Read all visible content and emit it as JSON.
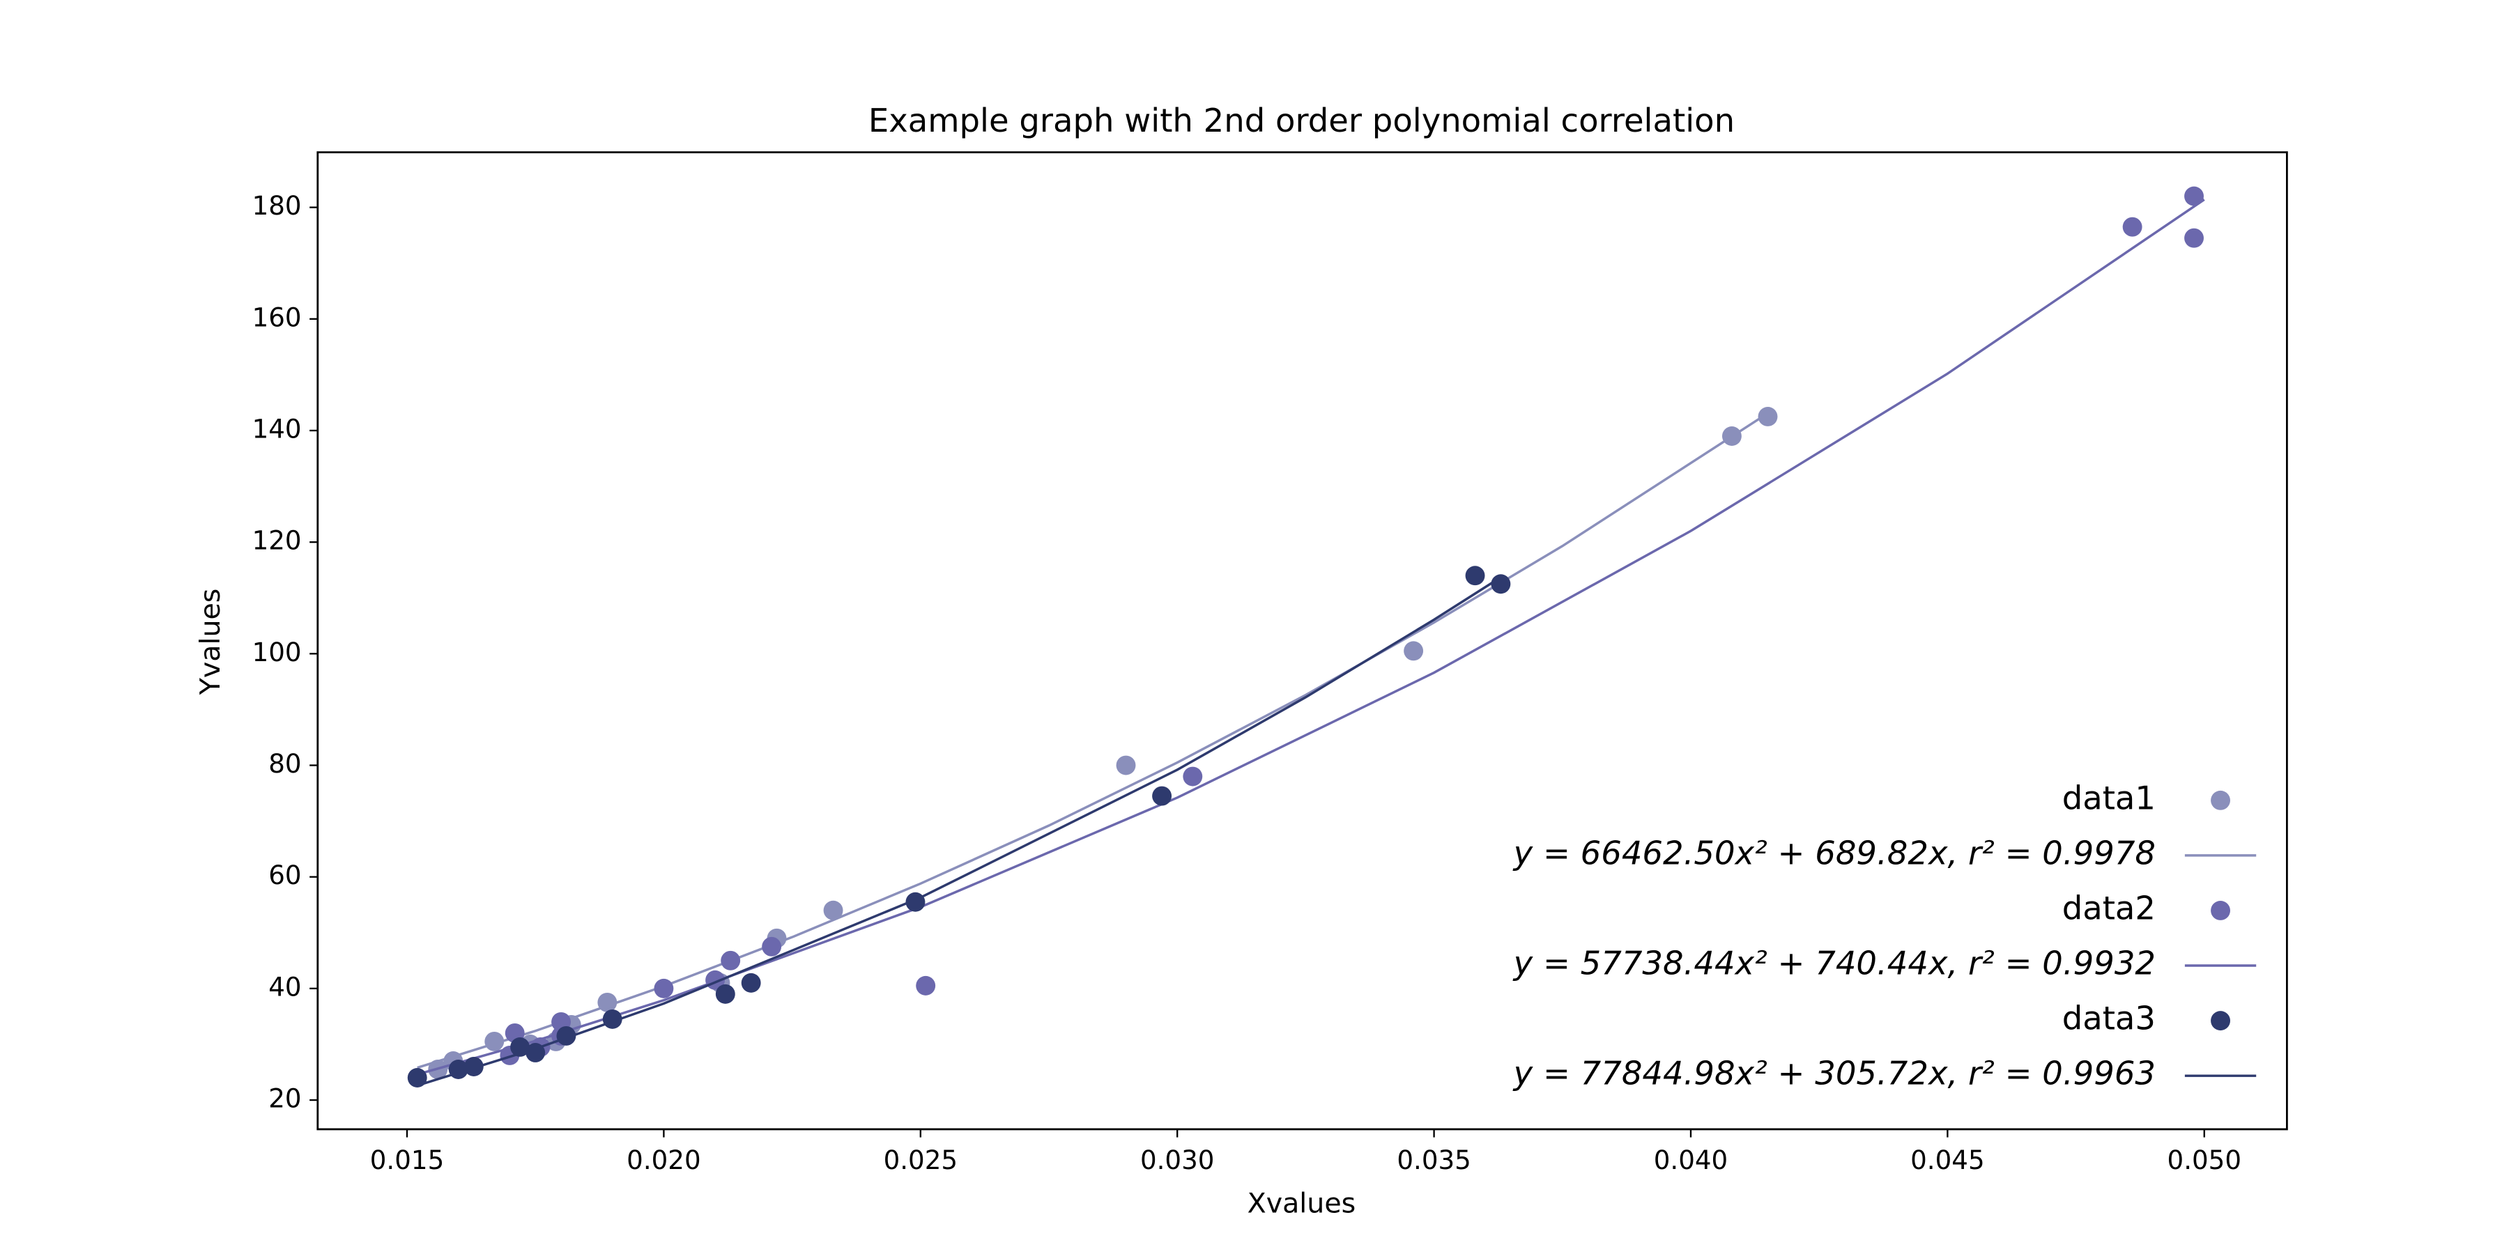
{
  "chart_data": {
    "type": "scatter",
    "title": "Example graph with 2nd order polynomial correlation",
    "xlabel": "Xvalues",
    "ylabel": "Yvalues",
    "xlim": [
      0.01326,
      0.05161
    ],
    "ylim": [
      14.77,
      189.87
    ],
    "xticks": [
      0.015,
      {
        "value": 0.02,
        "label": "0.020"
      },
      0.025,
      {
        "value": 0.03,
        "label": "0.030"
      },
      0.035,
      {
        "value": 0.04,
        "label": "0.040"
      },
      0.045,
      {
        "value": 0.05,
        "label": "0.050"
      }
    ],
    "yticks": [
      20,
      40,
      60,
      80,
      100,
      120,
      140,
      160,
      180
    ],
    "legend": "lower right",
    "series": [
      {
        "name": "data1",
        "color": "#8a8fbb",
        "x": [
          0.0156,
          0.0159,
          0.0167,
          0.0174,
          0.0179,
          0.0182,
          0.0189,
          0.0211,
          0.0222,
          0.0233,
          0.029,
          0.0346,
          0.0408,
          0.0415
        ],
        "values": [
          25.5,
          27,
          30.5,
          30,
          30.5,
          33.5,
          37.5,
          41,
          49,
          54,
          80,
          100.5,
          139,
          142.5
        ],
        "fit": {
          "name": "y = 66462.50x² + 689.82x, r² = 0.9978",
          "x": [
            0.0152,
            0.0175,
            0.02,
            0.0225,
            0.025,
            0.0275,
            0.03,
            0.0325,
            0.035,
            0.0375,
            0.0415
          ],
          "values": [
            25.8,
            32.4,
            40.4,
            49.2,
            58.8,
            69.2,
            80.5,
            92.6,
            105.6,
            119.3,
            143.1
          ]
        }
      },
      {
        "name": "data2",
        "color": "#6b68ad",
        "x": [
          0.017,
          0.0171,
          0.0176,
          0.018,
          0.018,
          0.02,
          0.021,
          0.0213,
          0.0221,
          0.0251,
          0.0303,
          0.0486,
          0.0498,
          0.0498
        ],
        "values": [
          28,
          32,
          29.5,
          34,
          31.5,
          40,
          41.5,
          45,
          47.5,
          40.5,
          78,
          176.5,
          174.5,
          182
        ],
        "fit": {
          "name": "y = 57738.44x² + 740.44x, r² = 0.9932",
          "x": [
            0.0152,
            0.0175,
            0.02,
            0.025,
            0.03,
            0.035,
            0.04,
            0.045,
            0.05
          ],
          "values": [
            24.6,
            30.6,
            37.9,
            54.6,
            74.2,
            96.6,
            122.0,
            150.2,
            181.4
          ]
        }
      },
      {
        "name": "data3",
        "color": "#2e3a6e",
        "x": [
          0.0152,
          0.016,
          0.0163,
          0.0172,
          0.0175,
          0.0181,
          0.019,
          0.0212,
          0.0217,
          0.0249,
          0.0297,
          0.0358,
          0.0363
        ],
        "values": [
          24,
          25.5,
          26,
          29.5,
          28.5,
          31.5,
          34.5,
          39,
          41,
          55.5,
          74.5,
          114,
          112.5
        ],
        "fit": {
          "name": "y = 77844.98x² + 305.72x, r² = 0.9963",
          "x": [
            0.0152,
            0.0175,
            0.02,
            0.025,
            0.03,
            0.0325,
            0.035,
            0.0363
          ],
          "values": [
            22.6,
            29.2,
            37.3,
            56.3,
            79.2,
            92.2,
            106.1,
            113.7
          ]
        }
      }
    ]
  }
}
